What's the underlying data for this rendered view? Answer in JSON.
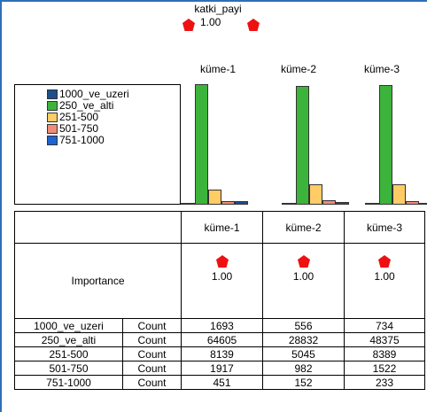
{
  "title": "katki_payi",
  "title_value": "1.00",
  "clusters": [
    "küme-1",
    "küme-2",
    "küme-3"
  ],
  "legend": [
    {
      "label": "1000_ve_uzeri",
      "color": "#1f4e8c"
    },
    {
      "label": "250_ve_alti",
      "color": "#3cb43c"
    },
    {
      "label": "251-500",
      "color": "#ffcc66"
    },
    {
      "label": "501-750",
      "color": "#f08c78"
    },
    {
      "label": "751-1000",
      "color": "#1e64d2"
    }
  ],
  "importance": {
    "label": "Importance",
    "values": [
      "1.00",
      "1.00",
      "1.00"
    ],
    "marker_color": "#ee1111"
  },
  "rows": [
    {
      "label": "1000_ve_uzeri",
      "stat": "Count",
      "values": [
        "1693",
        "556",
        "734"
      ]
    },
    {
      "label": "250_ve_alti",
      "stat": "Count",
      "values": [
        "64605",
        "28832",
        "48375"
      ]
    },
    {
      "label": "251-500",
      "stat": "Count",
      "values": [
        "8139",
        "5045",
        "8389"
      ]
    },
    {
      "label": "501-750",
      "stat": "Count",
      "values": [
        "1917",
        "982",
        "1522"
      ]
    },
    {
      "label": "751-1000",
      "stat": "Count",
      "values": [
        "451",
        "152",
        "233"
      ]
    }
  ]
}
